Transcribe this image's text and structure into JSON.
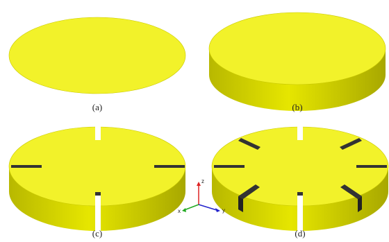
{
  "panels": [
    {
      "label": "(a)"
    },
    {
      "label": "(b)"
    },
    {
      "label": "(c)"
    },
    {
      "label": "(d)"
    }
  ],
  "axes": {
    "z": "z",
    "x": "x",
    "y": "y"
  }
}
